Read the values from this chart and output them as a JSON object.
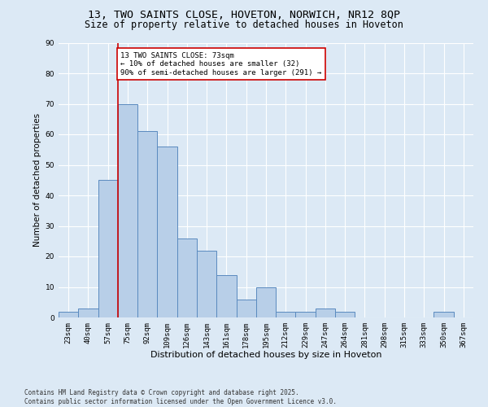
{
  "title": "13, TWO SAINTS CLOSE, HOVETON, NORWICH, NR12 8QP",
  "subtitle": "Size of property relative to detached houses in Hoveton",
  "xlabel": "Distribution of detached houses by size in Hoveton",
  "ylabel": "Number of detached properties",
  "bar_labels": [
    "23sqm",
    "40sqm",
    "57sqm",
    "75sqm",
    "92sqm",
    "109sqm",
    "126sqm",
    "143sqm",
    "161sqm",
    "178sqm",
    "195sqm",
    "212sqm",
    "229sqm",
    "247sqm",
    "264sqm",
    "281sqm",
    "298sqm",
    "315sqm",
    "333sqm",
    "350sqm",
    "367sqm"
  ],
  "bar_values": [
    2,
    3,
    45,
    70,
    61,
    56,
    26,
    22,
    14,
    6,
    10,
    2,
    2,
    3,
    2,
    0,
    0,
    0,
    0,
    2,
    0
  ],
  "bar_color": "#b8cfe8",
  "bar_edge_color": "#5a8abf",
  "vline_x_index": 3,
  "vline_color": "#cc0000",
  "annotation_text": "13 TWO SAINTS CLOSE: 73sqm\n← 10% of detached houses are smaller (32)\n90% of semi-detached houses are larger (291) →",
  "annotation_box_color": "#ffffff",
  "annotation_box_edge": "#cc0000",
  "ylim": [
    0,
    90
  ],
  "yticks": [
    0,
    10,
    20,
    30,
    40,
    50,
    60,
    70,
    80,
    90
  ],
  "bg_color": "#dce9f5",
  "plot_bg_color": "#dce9f5",
  "grid_color": "#ffffff",
  "footer_text": "Contains HM Land Registry data © Crown copyright and database right 2025.\nContains public sector information licensed under the Open Government Licence v3.0.",
  "title_fontsize": 9.5,
  "subtitle_fontsize": 8.5,
  "xlabel_fontsize": 8,
  "ylabel_fontsize": 7.5,
  "tick_fontsize": 6.5,
  "annotation_fontsize": 6.5,
  "footer_fontsize": 5.5
}
